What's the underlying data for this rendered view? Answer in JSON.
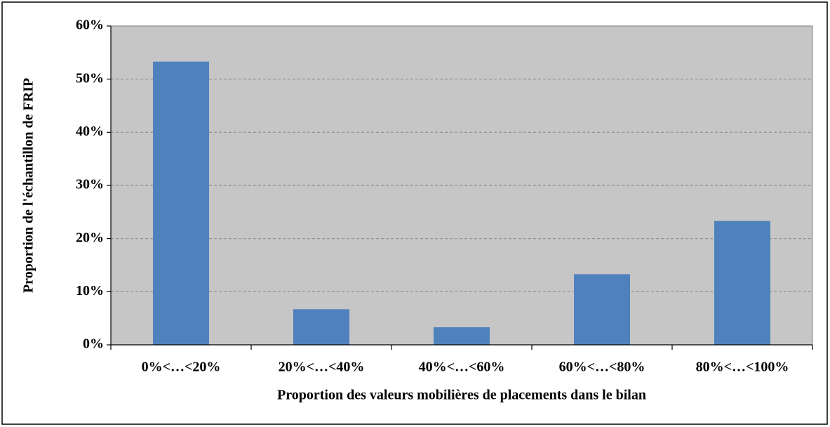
{
  "chart_data": {
    "type": "bar",
    "categories": [
      "0%<…<20%",
      "20%<…<40%",
      "40%<…<60%",
      "60%<…<80%",
      "80%<…<100%"
    ],
    "values": [
      53.3,
      6.7,
      3.3,
      13.3,
      23.3
    ],
    "color": "#4f81bd",
    "x_label": "Proportion des valeurs mobilières de placements dans le bilan",
    "y_label": "Proportion de l'échantillon de FRIP",
    "ylim": [
      0,
      60
    ],
    "yticks": [
      {
        "value": 0,
        "label": "0%"
      },
      {
        "value": 10,
        "label": "10%"
      },
      {
        "value": 20,
        "label": "20%"
      },
      {
        "value": 30,
        "label": "30%"
      },
      {
        "value": 40,
        "label": "40%"
      },
      {
        "value": 50,
        "label": "50%"
      },
      {
        "value": 60,
        "label": "60%"
      }
    ],
    "grid": true
  }
}
